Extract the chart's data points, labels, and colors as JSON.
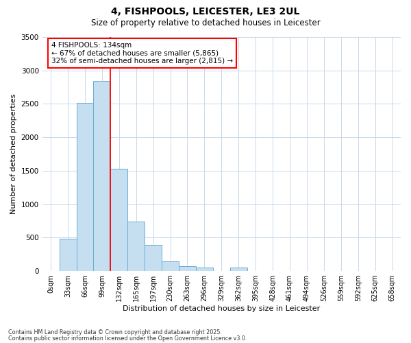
{
  "title1": "4, FISHPOOLS, LEICESTER, LE3 2UL",
  "title2": "Size of property relative to detached houses in Leicester",
  "xlabel": "Distribution of detached houses by size in Leicester",
  "ylabel": "Number of detached properties",
  "bar_color": "#c5dff0",
  "bar_edge_color": "#6aaed6",
  "categories": [
    "0sqm",
    "33sqm",
    "66sqm",
    "99sqm",
    "132sqm",
    "165sqm",
    "197sqm",
    "230sqm",
    "263sqm",
    "296sqm",
    "329sqm",
    "362sqm",
    "395sqm",
    "428sqm",
    "461sqm",
    "494sqm",
    "526sqm",
    "559sqm",
    "592sqm",
    "625sqm",
    "658sqm"
  ],
  "values": [
    0,
    480,
    2520,
    2840,
    1530,
    740,
    390,
    145,
    75,
    55,
    0,
    55,
    0,
    0,
    0,
    0,
    0,
    0,
    0,
    0,
    0
  ],
  "ylim": [
    0,
    3500
  ],
  "yticks": [
    0,
    500,
    1000,
    1500,
    2000,
    2500,
    3000,
    3500
  ],
  "annotation_line1": "4 FISHPOOLS: 134sqm",
  "annotation_line2": "← 67% of detached houses are smaller (5,865)",
  "annotation_line3": "32% of semi-detached houses are larger (2,815) →",
  "vline_x": 3.5,
  "footer1": "Contains HM Land Registry data © Crown copyright and database right 2025.",
  "footer2": "Contains public sector information licensed under the Open Government Licence v3.0.",
  "bg_color": "#ffffff",
  "grid_color": "#c8d8eb"
}
